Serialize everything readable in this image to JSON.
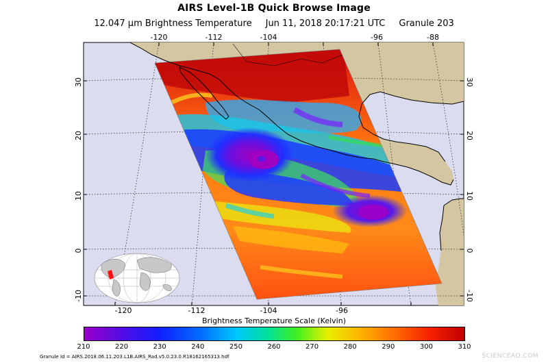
{
  "header": {
    "title": "AIRS Level-1B Quick Browse Image",
    "subtitle_product": "12.047 μm Brightness Temperature",
    "subtitle_time": "Jun 11, 2018 20:17:21 UTC",
    "subtitle_granule": "Granule 203"
  },
  "map": {
    "top_lon_labels": [
      "-120",
      "-112",
      "-104",
      "-96",
      "-88"
    ],
    "bottom_lon_labels": [
      "-120",
      "-112",
      "-104",
      "-96"
    ],
    "left_lat_labels": [
      "30",
      "20",
      "10",
      "0",
      "-10"
    ],
    "right_lat_labels": [
      "30",
      "20",
      "10",
      "0",
      "-10"
    ],
    "colors": {
      "ocean": "#dcdcf0",
      "land": "#d4c6a0",
      "coast": "#000000",
      "grid": "#333333"
    }
  },
  "colorbar": {
    "title": "Brightness Temperature Scale (Kelvin)",
    "tick_labels": [
      "210",
      "220",
      "230",
      "240",
      "250",
      "260",
      "270",
      "280",
      "290",
      "300",
      "310"
    ],
    "min": 210,
    "max": 310
  },
  "footer": {
    "granule_id": "Granule Id = AIRS.2018.06.11.203.L1B.AIRS_Rad.v5.0.23.0.R18162165313.hdf",
    "watermark": "SCIENCEAQ.COM"
  }
}
